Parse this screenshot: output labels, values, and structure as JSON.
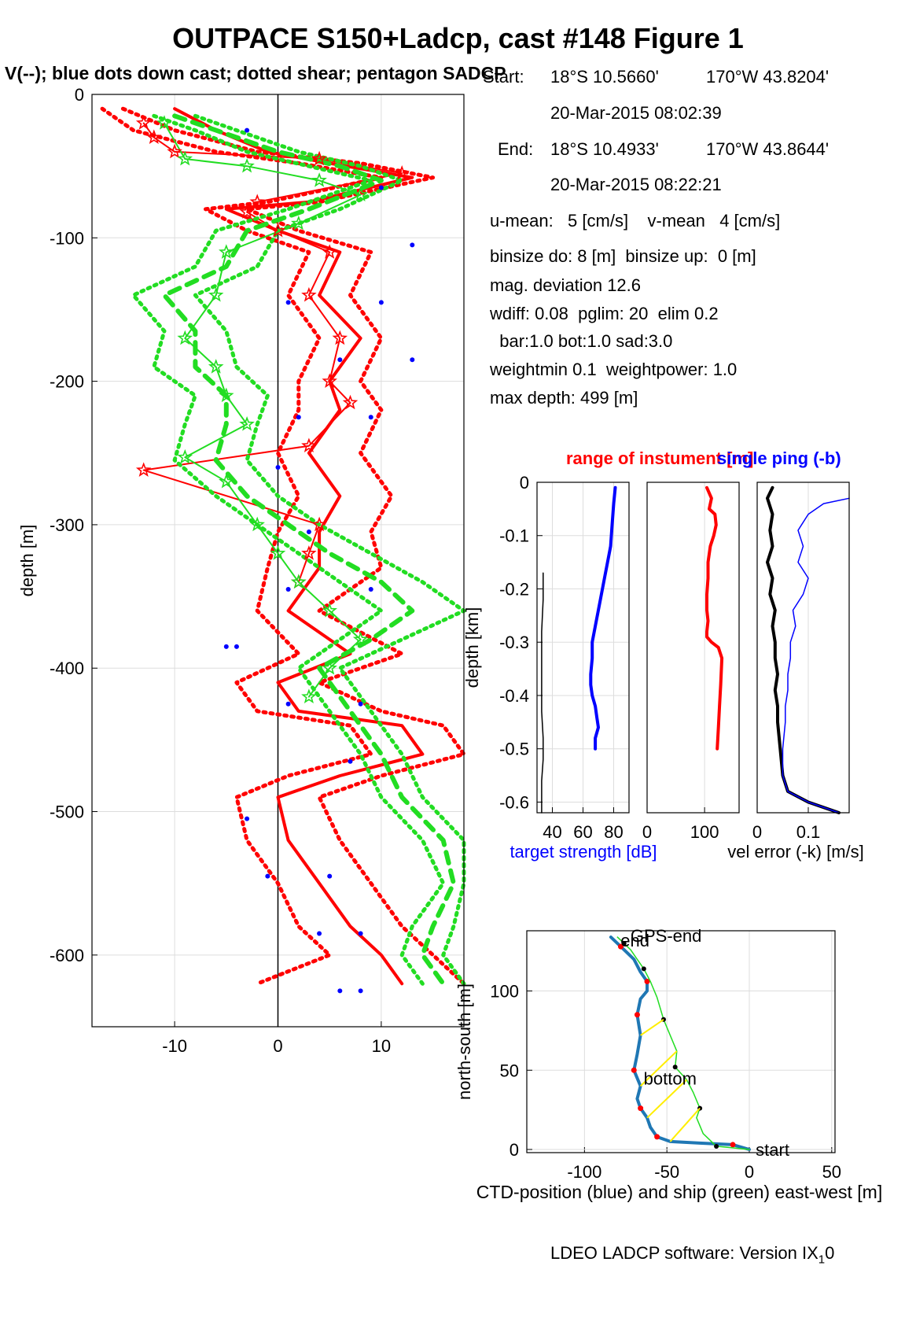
{
  "title": "OUTPACE S150+Ladcp, cast #148  Figure 1",
  "subtitle": "V(--); blue dots down cast; dotted shear; pentagon SADCP",
  "info": {
    "start_label": "Start:",
    "start_lat": "18°S 10.5660'",
    "start_lon": "170°W 43.8204'",
    "start_time": "20-Mar-2015 08:02:39",
    "end_label": "End:",
    "end_lat": "18°S 10.4933'",
    "end_lon": "170°W 43.8644'",
    "end_time": "20-Mar-2015 08:22:21",
    "u_mean": "u-mean:   5 [cm/s]    v-mean   4 [cm/s]",
    "binsize": "binsize do: 8 [m]  binsize up:  0 [m]",
    "mag_dev": "mag. deviation 12.6",
    "wdiff": "wdiff: 0.08  pglim: 20  elim 0.2",
    "bar": "  bar:1.0 bot:1.0 sad:3.0",
    "weight": "weightmin 0.1  weightpower: 1.0",
    "max_depth": "max depth: 499 [m]"
  },
  "footer": "LDEO LADCP software: Version IX",
  "footer_sub": "1",
  "footer_tail": "0",
  "colors": {
    "red": "#ff0000",
    "green": "#22dd22",
    "blue": "#0000ff",
    "black": "#000000",
    "ctd": "#1f77b4",
    "yellow": "#ffee00"
  },
  "chart_data": [
    {
      "type": "line",
      "id": "velocity-profile",
      "ylabel": "depth [m]",
      "xlabel": "",
      "xlim": [
        -18,
        18
      ],
      "ylim": [
        -650,
        0
      ],
      "xticks": [
        -10,
        0,
        10
      ],
      "yticks": [
        0,
        -100,
        -200,
        -300,
        -400,
        -500,
        -600
      ],
      "grid": true,
      "series": [
        {
          "color": "red",
          "style": "solid-thick",
          "x": [
            -10,
            -6,
            -1,
            5,
            13,
            3,
            -5,
            0,
            6,
            4,
            8,
            5,
            6,
            3,
            6,
            4,
            4,
            1,
            7,
            0,
            2,
            12,
            14,
            6,
            0,
            1,
            4,
            7,
            10,
            12
          ],
          "y": [
            -10,
            -25,
            -40,
            -48,
            -58,
            -75,
            -80,
            -95,
            -110,
            -140,
            -170,
            -200,
            -220,
            -250,
            -280,
            -305,
            -330,
            -360,
            -390,
            -410,
            -430,
            -440,
            -460,
            -475,
            -490,
            -520,
            -550,
            -580,
            -600,
            -620
          ]
        },
        {
          "color": "red",
          "style": "dotted-thick",
          "x": [
            -15,
            -10,
            -2,
            8,
            15,
            4,
            -3,
            2,
            9,
            7,
            10,
            8,
            10,
            8,
            11,
            9,
            10,
            4,
            12,
            4,
            10,
            16,
            18,
            10,
            4,
            6,
            9,
            12,
            15,
            18
          ],
          "y": [
            -10,
            -25,
            -40,
            -48,
            -58,
            -75,
            -80,
            -95,
            -110,
            -140,
            -170,
            -200,
            -220,
            -250,
            -280,
            -305,
            -330,
            -360,
            -390,
            -410,
            -430,
            -440,
            -460,
            -475,
            -490,
            -520,
            -550,
            -580,
            -600,
            -620
          ]
        },
        {
          "color": "red",
          "style": "dotted-thick",
          "x": [
            -17,
            -14,
            -6,
            2,
            10,
            -1,
            -7,
            -3,
            3,
            1,
            4,
            2,
            2,
            0,
            2,
            0,
            -1,
            -2,
            2,
            -4,
            -2,
            7,
            9,
            1,
            -4,
            -3,
            0,
            2,
            5,
            -2
          ],
          "y": [
            -10,
            -25,
            -40,
            -48,
            -58,
            -75,
            -80,
            -95,
            -110,
            -140,
            -170,
            -200,
            -220,
            -250,
            -280,
            -305,
            -330,
            -360,
            -390,
            -410,
            -430,
            -440,
            -460,
            -475,
            -490,
            -520,
            -550,
            -580,
            -600,
            -620
          ]
        },
        {
          "color": "red",
          "style": "star",
          "x": [
            -13,
            -12,
            -10,
            4,
            12,
            -2,
            -3,
            0,
            5,
            3,
            6,
            5,
            7,
            3,
            -13,
            4,
            3,
            2
          ],
          "y": [
            -20,
            -30,
            -40,
            -45,
            -55,
            -75,
            -82,
            -95,
            -110,
            -140,
            -170,
            -200,
            -215,
            -245,
            -262,
            -300,
            -320,
            -340
          ]
        },
        {
          "color": "green",
          "style": "dotted-thick",
          "x": [
            -12,
            -8,
            -3,
            3,
            9,
            1,
            -6,
            -8,
            -14,
            -11,
            -12,
            -8,
            -9,
            -10,
            -6,
            -2,
            2,
            6,
            10,
            6,
            2,
            4,
            6,
            8,
            10,
            14,
            16,
            13,
            12,
            14
          ],
          "y": [
            -15,
            -25,
            -40,
            -50,
            -60,
            -80,
            -95,
            -120,
            -140,
            -165,
            -190,
            -210,
            -230,
            -255,
            -280,
            -300,
            -320,
            -340,
            -360,
            -380,
            -400,
            -420,
            -440,
            -460,
            -490,
            -520,
            -550,
            -580,
            -600,
            -620
          ]
        },
        {
          "color": "green",
          "style": "dotted-thick",
          "x": [
            -8,
            -4,
            2,
            8,
            12,
            6,
            0,
            -2,
            -8,
            -5,
            -4,
            -1,
            -2,
            -3,
            0,
            4,
            9,
            14,
            18,
            12,
            6,
            8,
            10,
            12,
            14,
            18,
            18,
            17,
            16,
            18
          ],
          "y": [
            -15,
            -25,
            -40,
            -50,
            -60,
            -80,
            -95,
            -120,
            -140,
            -165,
            -190,
            -210,
            -230,
            -255,
            -280,
            -300,
            -320,
            -340,
            -360,
            -380,
            -400,
            -420,
            -440,
            -460,
            -490,
            -520,
            -550,
            -580,
            -600,
            -620
          ]
        },
        {
          "color": "green",
          "style": "dashed-thick",
          "x": [
            -10,
            -6,
            0,
            6,
            10,
            3,
            -3,
            -5,
            -11,
            -8,
            -8,
            -5,
            -5,
            -6,
            -3,
            1,
            5,
            10,
            13,
            9,
            4,
            6,
            8,
            10,
            12,
            16,
            17,
            15,
            14,
            16
          ],
          "y": [
            -15,
            -25,
            -40,
            -50,
            -60,
            -80,
            -95,
            -120,
            -140,
            -165,
            -190,
            -210,
            -230,
            -255,
            -280,
            -300,
            -320,
            -340,
            -360,
            -380,
            -400,
            -420,
            -440,
            -460,
            -490,
            -520,
            -550,
            -580,
            -600,
            -620
          ]
        },
        {
          "color": "green",
          "style": "star",
          "x": [
            -11,
            -9,
            -3,
            4,
            8,
            2,
            -5,
            -6,
            -9,
            -6,
            -5,
            -3,
            -9,
            -5,
            -2,
            0,
            2,
            5,
            8,
            5,
            3
          ],
          "y": [
            -20,
            -45,
            -50,
            -60,
            -70,
            -90,
            -110,
            -140,
            -170,
            -190,
            -210,
            -230,
            -253,
            -270,
            -300,
            -320,
            -340,
            -360,
            -380,
            -400,
            -420
          ]
        }
      ],
      "down_cast_dots": {
        "x": [
          -3,
          10,
          13,
          1,
          10,
          6,
          13,
          2,
          9,
          0,
          3,
          1,
          9,
          -5,
          -4,
          1,
          8,
          7,
          -3,
          -1,
          5,
          4,
          8,
          6,
          8
        ],
        "y": [
          -25,
          -65,
          -105,
          -145,
          -145,
          -185,
          -185,
          -225,
          -225,
          -260,
          -305,
          -345,
          -345,
          -385,
          -385,
          -425,
          -425,
          -465,
          -505,
          -545,
          -545,
          -585,
          -585,
          -625,
          -625
        ]
      }
    },
    {
      "type": "line",
      "id": "target-strength",
      "ylabel": "depth [km]",
      "xlabel": "target strength [dB]",
      "xlim": [
        30,
        90
      ],
      "ylim": [
        -0.62,
        0
      ],
      "xticks": [
        40,
        60,
        80
      ],
      "xtick_labels": [
        "40",
        "60",
        "80"
      ],
      "yticks": [
        0,
        -0.1,
        -0.2,
        -0.3,
        -0.4,
        -0.5,
        -0.6
      ],
      "ytick_labels": [
        "0",
        "-0.1",
        "-0.2",
        "-0.3",
        "-0.4",
        "-0.5",
        "-0.6"
      ],
      "series": [
        {
          "color": "blue",
          "style": "solid-thick",
          "x": [
            81,
            80,
            79,
            78,
            76,
            74,
            72,
            70,
            68,
            66,
            66,
            65,
            65,
            66,
            68,
            69,
            70,
            68,
            68
          ],
          "y": [
            -0.01,
            -0.04,
            -0.08,
            -0.12,
            -0.15,
            -0.18,
            -0.21,
            -0.24,
            -0.27,
            -0.3,
            -0.33,
            -0.36,
            -0.38,
            -0.4,
            -0.42,
            -0.44,
            -0.46,
            -0.48,
            -0.5
          ]
        },
        {
          "color": "black",
          "style": "solid-thin",
          "x": [
            34,
            34,
            33,
            33,
            33,
            33,
            34,
            34,
            33,
            33,
            33
          ],
          "y": [
            -0.17,
            -0.22,
            -0.28,
            -0.33,
            -0.38,
            -0.43,
            -0.48,
            -0.52,
            -0.56,
            -0.59,
            -0.62
          ]
        }
      ]
    },
    {
      "type": "line",
      "id": "range-of-instrument",
      "title": "range of instument [m]",
      "xlabel": "",
      "xlim": [
        0,
        160
      ],
      "ylim": [
        -0.62,
        0
      ],
      "xticks": [
        0,
        100
      ],
      "xtick_labels": [
        "0",
        "100"
      ],
      "series": [
        {
          "color": "red",
          "style": "solid-thick",
          "x": [
            104,
            112,
            108,
            118,
            120,
            116,
            110,
            106,
            106,
            104,
            104,
            106,
            104,
            104,
            112,
            124,
            130,
            128,
            126,
            124,
            122
          ],
          "y": [
            -0.01,
            -0.03,
            -0.05,
            -0.06,
            -0.08,
            -0.1,
            -0.12,
            -0.15,
            -0.18,
            -0.21,
            -0.24,
            -0.26,
            -0.28,
            -0.29,
            -0.3,
            -0.31,
            -0.33,
            -0.38,
            -0.42,
            -0.46,
            -0.5
          ]
        }
      ]
    },
    {
      "type": "line",
      "id": "vel-error",
      "title": "single ping (-b)",
      "xlabel": "vel error (-k) [m/s]",
      "xlim": [
        0,
        0.18
      ],
      "ylim": [
        -0.62,
        0
      ],
      "xticks": [
        0,
        0.1
      ],
      "xtick_labels": [
        "0",
        "0.1"
      ],
      "series": [
        {
          "color": "black",
          "style": "solid-thick",
          "x": [
            0.03,
            0.02,
            0.03,
            0.025,
            0.03,
            0.02,
            0.03,
            0.025,
            0.035,
            0.03,
            0.035,
            0.035,
            0.04,
            0.035,
            0.04,
            0.04,
            0.045,
            0.05,
            0.06,
            0.1,
            0.16
          ],
          "y": [
            -0.01,
            -0.03,
            -0.06,
            -0.09,
            -0.12,
            -0.15,
            -0.18,
            -0.21,
            -0.24,
            -0.27,
            -0.3,
            -0.33,
            -0.36,
            -0.39,
            -0.42,
            -0.45,
            -0.5,
            -0.55,
            -0.58,
            -0.6,
            -0.62
          ]
        },
        {
          "color": "blue",
          "style": "solid-thin",
          "x": [
            0.18,
            0.13,
            0.1,
            0.08,
            0.09,
            0.08,
            0.1,
            0.09,
            0.07,
            0.075,
            0.065,
            0.065,
            0.06,
            0.06,
            0.055,
            0.055,
            0.05,
            0.05,
            0.06,
            0.1,
            0.16
          ],
          "y": [
            -0.03,
            -0.04,
            -0.06,
            -0.09,
            -0.12,
            -0.15,
            -0.18,
            -0.21,
            -0.24,
            -0.27,
            -0.3,
            -0.33,
            -0.36,
            -0.39,
            -0.42,
            -0.45,
            -0.5,
            -0.55,
            -0.58,
            -0.6,
            -0.62
          ]
        }
      ]
    },
    {
      "type": "line",
      "id": "ctd-position",
      "ylabel": "north-south [m]",
      "xlabel": "CTD-position (blue) and ship (green) east-west [m]",
      "xlim": [
        -135,
        52
      ],
      "ylim": [
        -2,
        138
      ],
      "xticks": [
        -100,
        -50,
        0,
        50
      ],
      "xtick_labels": [
        "-100",
        "-50",
        "0",
        "50"
      ],
      "yticks": [
        0,
        50,
        100
      ],
      "ytick_labels": [
        "0",
        "50",
        "100"
      ],
      "series": [
        {
          "name": "ctd",
          "color": "ctd",
          "style": "solid-thick",
          "x": [
            0,
            -10,
            -30,
            -48,
            -56,
            -60,
            -62,
            -66,
            -68,
            -66,
            -70,
            -68,
            -66,
            -68,
            -66,
            -62,
            -62,
            -66,
            -70,
            -78,
            -84
          ],
          "y": [
            0,
            3,
            4,
            5,
            8,
            14,
            20,
            26,
            32,
            40,
            50,
            60,
            72,
            85,
            95,
            100,
            106,
            112,
            120,
            128,
            134
          ]
        },
        {
          "name": "ship",
          "color": "green",
          "style": "solid-thin",
          "x": [
            0,
            -20,
            -28,
            -32,
            -30,
            -34,
            -38,
            -45,
            -44,
            -48,
            -52,
            -56,
            -60,
            -64,
            -68,
            -72,
            -76,
            -80
          ],
          "y": [
            0,
            2,
            10,
            20,
            26,
            36,
            44,
            52,
            62,
            72,
            82,
            96,
            106,
            114,
            120,
            126,
            130,
            134
          ]
        }
      ],
      "labels": [
        {
          "text": "start",
          "x": 2,
          "y": 0
        },
        {
          "text": "bottom",
          "x": -66,
          "y": 45
        },
        {
          "text": "GPS-end",
          "x": -74,
          "y": 135
        },
        {
          "text": "end",
          "x": -80,
          "y": 132
        }
      ]
    }
  ]
}
